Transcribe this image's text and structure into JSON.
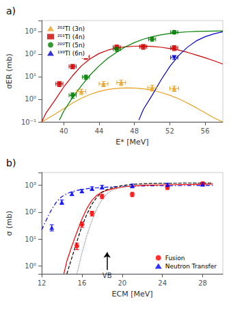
{
  "chart_data": [
    {
      "type": "scatter",
      "title": "a)",
      "xlabel": "E* [MeV]",
      "ylabel": "σER (mb)",
      "log": "y",
      "grid": false,
      "legend": "upper left",
      "xlim": [
        37.5,
        58
      ],
      "ylim": [
        0.1,
        3000
      ],
      "xticks": [
        40,
        44,
        48,
        52,
        56
      ],
      "yticks": [
        {
          "value": 0.1,
          "label": "10⁻¹"
        },
        {
          "value": 1,
          "label": "10⁰"
        },
        {
          "value": 10,
          "label": "10¹"
        },
        {
          "value": 100,
          "label": "10²"
        },
        {
          "value": 1000,
          "label": "10³"
        }
      ],
      "series": [
        {
          "type": "line",
          "color": "#E8A020",
          "line_style": "solid",
          "x": [
            37.5,
            38,
            39,
            40,
            41,
            42,
            43,
            44,
            45,
            46,
            47,
            48,
            49,
            50,
            51,
            52,
            53,
            54,
            55,
            56,
            57,
            58
          ],
          "values": [
            0.1,
            0.13,
            0.22,
            0.38,
            0.68,
            1.1,
            1.65,
            2.2,
            2.7,
            3.0,
            3.15,
            3.1,
            2.9,
            2.5,
            2.0,
            1.5,
            1.05,
            0.68,
            0.42,
            0.25,
            0.15,
            0.1
          ]
        },
        {
          "name": "²⁰²Tl (3n)",
          "color": "#E8A020",
          "marker": "triangle",
          "x": [
            42.0,
            44.5,
            46.5,
            50.0,
            52.5
          ],
          "values": [
            2.2,
            4.8,
            5.5,
            3.2,
            3.0
          ],
          "xerr": [
            0.5,
            0.5,
            0.5,
            0.5,
            0.5
          ],
          "yerr_lo": [
            0.6,
            1.2,
            1.5,
            0.9,
            0.8
          ],
          "yerr_hi": [
            0.6,
            1.2,
            1.5,
            0.9,
            0.8
          ]
        },
        {
          "type": "line",
          "color": "#CC0000",
          "line_style": "solid",
          "x": [
            37.5,
            38,
            39,
            40,
            41,
            42,
            43,
            44,
            45,
            46,
            47,
            48,
            49,
            50,
            51,
            52,
            53,
            54,
            55,
            56,
            57,
            58
          ],
          "values": [
            0.1,
            0.25,
            0.9,
            3.5,
            11.0,
            30.0,
            62.0,
            105.0,
            148.0,
            185.0,
            208.0,
            220.0,
            222.0,
            215.0,
            198.0,
            175.0,
            148.0,
            118.0,
            90.0,
            68.0,
            50.0,
            36.0
          ]
        },
        {
          "name": "²⁰¹Tl (4n)",
          "color": "#CC0000",
          "marker": "square",
          "x": [
            39.5,
            41.0,
            42.5,
            46.0,
            49.0,
            52.5
          ],
          "values": [
            4.8,
            28.0,
            75.0,
            200.0,
            210.0,
            185.0
          ],
          "xerr": [
            0.4,
            0.4,
            0.4,
            0.4,
            0.4,
            0.4
          ],
          "yerr_lo": [
            1.2,
            6.0,
            18.0,
            45.0,
            50.0,
            45.0
          ],
          "yerr_hi": [
            1.2,
            6.0,
            18.0,
            45.0,
            50.0,
            45.0
          ]
        },
        {
          "type": "line",
          "color": "#008000",
          "line_style": "solid",
          "x": [
            39.5,
            40,
            41,
            42,
            43,
            44,
            45,
            46,
            47,
            48,
            49,
            50,
            51,
            52,
            53,
            54,
            55,
            56,
            57,
            58
          ],
          "values": [
            0.12,
            0.3,
            1.2,
            4.0,
            12.0,
            30.0,
            65.0,
            120.0,
            210.0,
            320.0,
            450.0,
            580.0,
            700.0,
            810.0,
            890.0,
            950.0,
            990.0,
            1015.0,
            1035.0,
            1048.0
          ]
        },
        {
          "name": "²⁰⁰Tl (5n)",
          "color": "#008000",
          "marker": "circle",
          "x": [
            41.0,
            42.5,
            46.0,
            50.0,
            52.5
          ],
          "values": [
            1.5,
            9.5,
            165.0,
            450.0,
            920.0
          ],
          "xerr": [
            0.4,
            0.4,
            0.4,
            0.4,
            0.4
          ],
          "yerr_lo": [
            0.4,
            2.0,
            35.0,
            80.0,
            160.0
          ],
          "yerr_hi": [
            0.4,
            2.0,
            35.0,
            80.0,
            160.0
          ]
        },
        {
          "type": "line",
          "color": "#0000CC",
          "line_style": "solid",
          "x": [
            48.5,
            49,
            50,
            51,
            52,
            53,
            54,
            55,
            56,
            57,
            58
          ],
          "values": [
            0.12,
            0.35,
            1.5,
            7.0,
            28.0,
            85.0,
            200.0,
            380.0,
            580.0,
            780.0,
            960.0
          ]
        },
        {
          "name": "¹⁹⁹Tl (6n)",
          "color": "#0000CC",
          "marker": "triangle_down",
          "x": [
            52.5
          ],
          "values": [
            70.0
          ],
          "xerr": [
            0.4
          ],
          "yerr_lo": [
            12.0
          ],
          "yerr_hi": [
            12.0
          ]
        }
      ]
    },
    {
      "type": "scatter",
      "title": "b)",
      "xlabel": "ECM [MeV]",
      "ylabel": "σ (mb)",
      "log": "y",
      "grid": false,
      "legend": "lower right",
      "xlim": [
        12,
        30
      ],
      "ylim": [
        0.5,
        3000
      ],
      "xticks": [
        12,
        16,
        20,
        24,
        28
      ],
      "yticks": [
        {
          "value": 1,
          "label": "10⁰"
        },
        {
          "value": 10,
          "label": "10¹"
        },
        {
          "value": 100,
          "label": "10²"
        },
        {
          "value": 1000,
          "label": "10³"
        }
      ],
      "series": [
        {
          "type": "line",
          "color": "blue",
          "line_style": "dashdot",
          "x": [
            12.0,
            12.5,
            13.0,
            13.5,
            14.0,
            14.5,
            15.0,
            15.5,
            16.0,
            16.5,
            17.0,
            17.5,
            18.0,
            19.0,
            20.0,
            21.0,
            22.0,
            23.0,
            24.0,
            25.0,
            26.0,
            27.0,
            28.0,
            29.0
          ],
          "values": [
            22.0,
            55.0,
            130.0,
            250.0,
            380.0,
            490.0,
            580.0,
            645.0,
            700.0,
            745.0,
            782.0,
            812.0,
            838.0,
            878.0,
            908.0,
            930.0,
            947.0,
            960.0,
            970.0,
            977.0,
            982.0,
            986.0,
            989.0,
            991.0
          ]
        },
        {
          "type": "line",
          "color": "red",
          "line_style": "solid",
          "x": [
            14.2,
            14.5,
            15.0,
            15.5,
            16.0,
            16.5,
            17.0,
            17.5,
            18.0,
            19.0,
            20.0,
            21.0,
            22.0,
            23.0,
            24.0,
            25.0,
            26.0,
            27.0,
            28.0,
            29.0
          ],
          "values": [
            0.5,
            1.5,
            5.5,
            18.0,
            55.0,
            140.0,
            280.0,
            430.0,
            570.0,
            740.0,
            860.0,
            940.0,
            990.0,
            1020.0,
            1040.0,
            1058.0,
            1070.0,
            1080.0,
            1095.0,
            1110.0
          ]
        },
        {
          "type": "line",
          "color": "black",
          "line_style": "dashed",
          "x": [
            14.5,
            15.0,
            15.5,
            16.0,
            16.5,
            17.0,
            17.5,
            18.0,
            18.5,
            19.0,
            20.0,
            21.0,
            22.0,
            23.0,
            24.0,
            25.0,
            26.0,
            27.0,
            28.0,
            29.0
          ],
          "values": [
            0.5,
            2.0,
            8.0,
            30.0,
            85.0,
            200.0,
            370.0,
            550.0,
            700.0,
            820.0,
            980.0,
            1080.0,
            1140.0,
            1175.0,
            1195.0,
            1205.0,
            1210.0,
            1215.0,
            1218.0,
            1220.0
          ]
        },
        {
          "type": "line",
          "color": "gray",
          "line_style": "dotted",
          "x": [
            15.5,
            16.0,
            16.5,
            17.0,
            17.5,
            18.0,
            18.5,
            19.0,
            20.0,
            21.0,
            22.0,
            23.0,
            24.0,
            25.0,
            26.0,
            27.0,
            28.0,
            29.0
          ],
          "values": [
            0.5,
            3.0,
            14.0,
            50.0,
            140.0,
            300.0,
            490.0,
            660.0,
            870.0,
            1010.0,
            1090.0,
            1135.0,
            1162.0,
            1178.0,
            1188.0,
            1194.0,
            1198.0,
            1202.0
          ]
        },
        {
          "name": "Fusion",
          "color": "red",
          "marker": "circle",
          "x": [
            15.5,
            16.0,
            17.0,
            18.0,
            21.0,
            24.5,
            28.0
          ],
          "values": [
            5.5,
            35.0,
            90.0,
            390.0,
            460.0,
            840.0,
            1150.0
          ],
          "yerr_lo": [
            1.5,
            8.0,
            18.0,
            70.0,
            80.0,
            140.0,
            180.0
          ],
          "yerr_hi": [
            1.5,
            8.0,
            18.0,
            70.0,
            80.0,
            140.0,
            180.0
          ]
        },
        {
          "name": "Neutron Transfer",
          "color": "blue",
          "marker": "triangle",
          "x": [
            13.0,
            14.0,
            15.0,
            16.0,
            17.0,
            18.0,
            21.0,
            24.5,
            28.0
          ],
          "values": [
            27.0,
            240.0,
            490.0,
            620.0,
            770.0,
            870.0,
            970.0,
            1050.0,
            1100.0
          ],
          "yerr": [
            7.0,
            45.0,
            70.0,
            90.0,
            110.0,
            130.0,
            140.0,
            140.0,
            150.0
          ]
        }
      ],
      "annotations": [
        {
          "text": "VB",
          "x": 18.5,
          "y": 0.62,
          "arrow_from": [
            18.5,
            0.7
          ],
          "arrow_to": [
            18.5,
            3.2
          ]
        }
      ]
    }
  ]
}
